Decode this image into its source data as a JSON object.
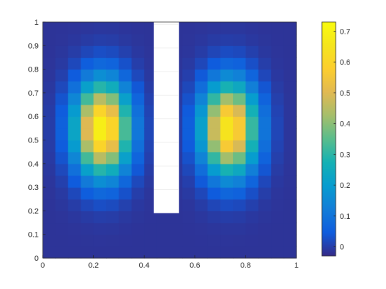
{
  "chart_data": {
    "type": "heatmap",
    "title": "",
    "xlabel": "",
    "ylabel": "",
    "xlim": [
      0,
      1
    ],
    "ylim": [
      0,
      1
    ],
    "x_ticks": [
      "0",
      "0.2",
      "0.4",
      "0.6",
      "0.8",
      "1"
    ],
    "y_ticks": [
      "0",
      "0.1",
      "0.2",
      "0.3",
      "0.4",
      "0.5",
      "0.6",
      "0.7",
      "0.8",
      "0.9",
      "1"
    ],
    "colorbar": {
      "range": [
        -0.03,
        0.73
      ],
      "ticks": [
        "0",
        "0.1",
        "0.2",
        "0.3",
        "0.4",
        "0.5",
        "0.6",
        "0.7"
      ],
      "colormap": "parula"
    },
    "grid_resolution": 20,
    "blanked_region": {
      "x": [
        0.4375,
        0.5375
      ],
      "y": [
        0.19,
        1.0
      ]
    },
    "sources": [
      {
        "x": 0.235,
        "y": 0.55,
        "peak": 0.72
      },
      {
        "x": 0.735,
        "y": 0.55,
        "peak": 0.68
      }
    ],
    "edge_value": -0.015,
    "box": true,
    "grid": false
  }
}
